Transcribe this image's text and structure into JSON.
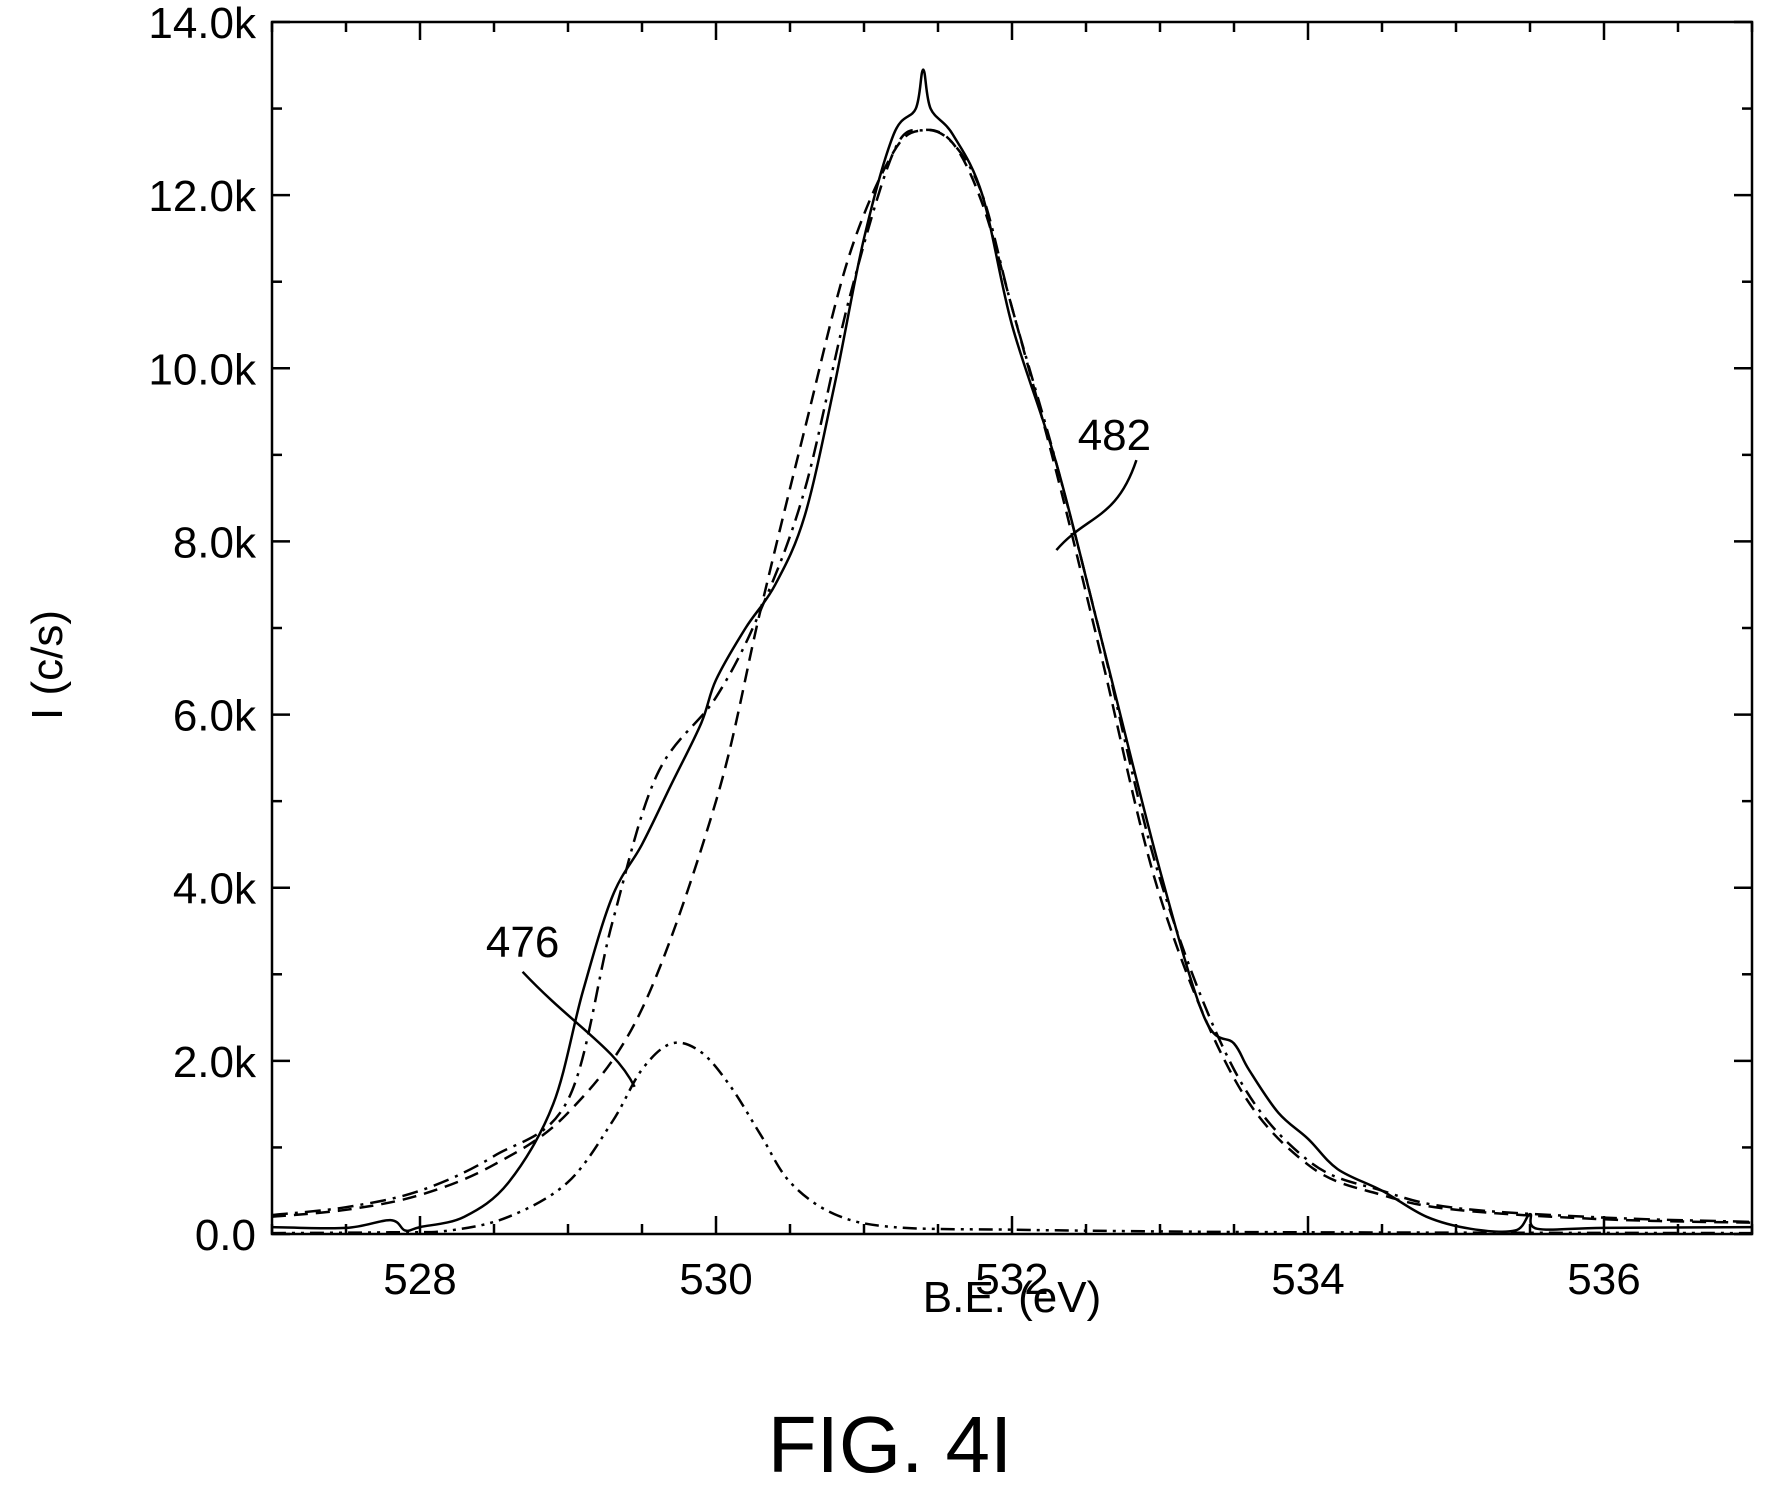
{
  "chart_data": {
    "type": "line",
    "title": "",
    "xlabel": "B.E. (eV)",
    "ylabel": "I (c/s)",
    "xlim": [
      527,
      537
    ],
    "ylim": [
      0,
      14000
    ],
    "grid": false,
    "legend": "none",
    "x_ticks": [
      528,
      530,
      532,
      534,
      536
    ],
    "x_tick_labels": [
      "528",
      "530",
      "532",
      "534",
      "536"
    ],
    "y_ticks": [
      0,
      2000,
      4000,
      6000,
      8000,
      10000,
      12000,
      14000
    ],
    "y_tick_labels": [
      "0.0",
      "2.0k",
      "4.0k",
      "6.0k",
      "8.0k",
      "10.0k",
      "12.0k",
      "14.0k"
    ],
    "series": [
      {
        "style": "solid",
        "x": [
          527.0,
          527.5,
          527.8,
          527.9,
          528.0,
          528.3,
          528.6,
          528.9,
          529.1,
          529.3,
          529.5,
          529.7,
          529.9,
          530.0,
          530.2,
          530.4,
          530.6,
          530.8,
          531.0,
          531.2,
          531.35,
          531.4,
          531.45,
          531.6,
          531.8,
          532.0,
          532.3,
          532.6,
          533.0,
          533.3,
          533.5,
          533.6,
          533.8,
          534.0,
          534.2,
          534.5,
          534.8,
          535.1,
          535.4,
          535.5,
          535.55,
          536.0,
          537.0
        ],
        "y": [
          80,
          70,
          160,
          40,
          80,
          200,
          600,
          1500,
          2800,
          3900,
          4500,
          5200,
          5900,
          6400,
          7000,
          7500,
          8300,
          9800,
          11500,
          12700,
          13000,
          13450,
          13000,
          12700,
          12000,
          10500,
          8900,
          6900,
          4200,
          2500,
          2200,
          1900,
          1400,
          1100,
          750,
          500,
          200,
          60,
          40,
          230,
          60,
          70,
          80
        ]
      },
      {
        "style": "dashed",
        "x": [
          527.0,
          527.5,
          528.0,
          528.5,
          529.0,
          529.5,
          530.0,
          530.3,
          530.6,
          530.9,
          531.2,
          531.4,
          531.6,
          531.8,
          532.0,
          532.3,
          532.6,
          533.0,
          533.5,
          534.0,
          534.5,
          535.0,
          536.0,
          537.0
        ],
        "y": [
          200,
          280,
          450,
          800,
          1400,
          2600,
          5000,
          7200,
          9300,
          11300,
          12500,
          12750,
          12600,
          11900,
          10700,
          8800,
          6700,
          3900,
          1800,
          800,
          450,
          280,
          170,
          130
        ]
      },
      {
        "style": "dash-dot",
        "x": [
          527.0,
          527.5,
          528.0,
          528.5,
          529.0,
          529.3,
          529.6,
          530.0,
          530.3,
          530.6,
          530.9,
          531.2,
          531.4,
          531.6,
          531.8,
          532.0,
          532.3,
          532.6,
          533.0,
          533.5,
          534.0,
          534.5,
          535.0,
          536.0,
          537.0
        ],
        "y": [
          220,
          310,
          500,
          900,
          1550,
          3600,
          5300,
          6200,
          7200,
          8600,
          10800,
          12500,
          12750,
          12600,
          12000,
          10700,
          8900,
          6900,
          4100,
          1900,
          850,
          500,
          300,
          190,
          140
        ]
      },
      {
        "style": "dash-dot-dot",
        "x": [
          527.0,
          527.8,
          528.2,
          528.6,
          529.0,
          529.3,
          529.5,
          529.7,
          529.9,
          530.1,
          530.3,
          530.5,
          530.8,
          531.2,
          532.0,
          533.0,
          534.0,
          537.0
        ],
        "y": [
          10,
          20,
          40,
          200,
          600,
          1300,
          1900,
          2200,
          2100,
          1700,
          1150,
          600,
          230,
          80,
          50,
          30,
          20,
          10
        ]
      }
    ],
    "annotations": [
      {
        "text": "476",
        "x": 529.45,
        "y": 1700
      },
      {
        "text": "482",
        "x": 532.3,
        "y": 7900
      }
    ]
  },
  "figure_label": "FIG. 4I"
}
